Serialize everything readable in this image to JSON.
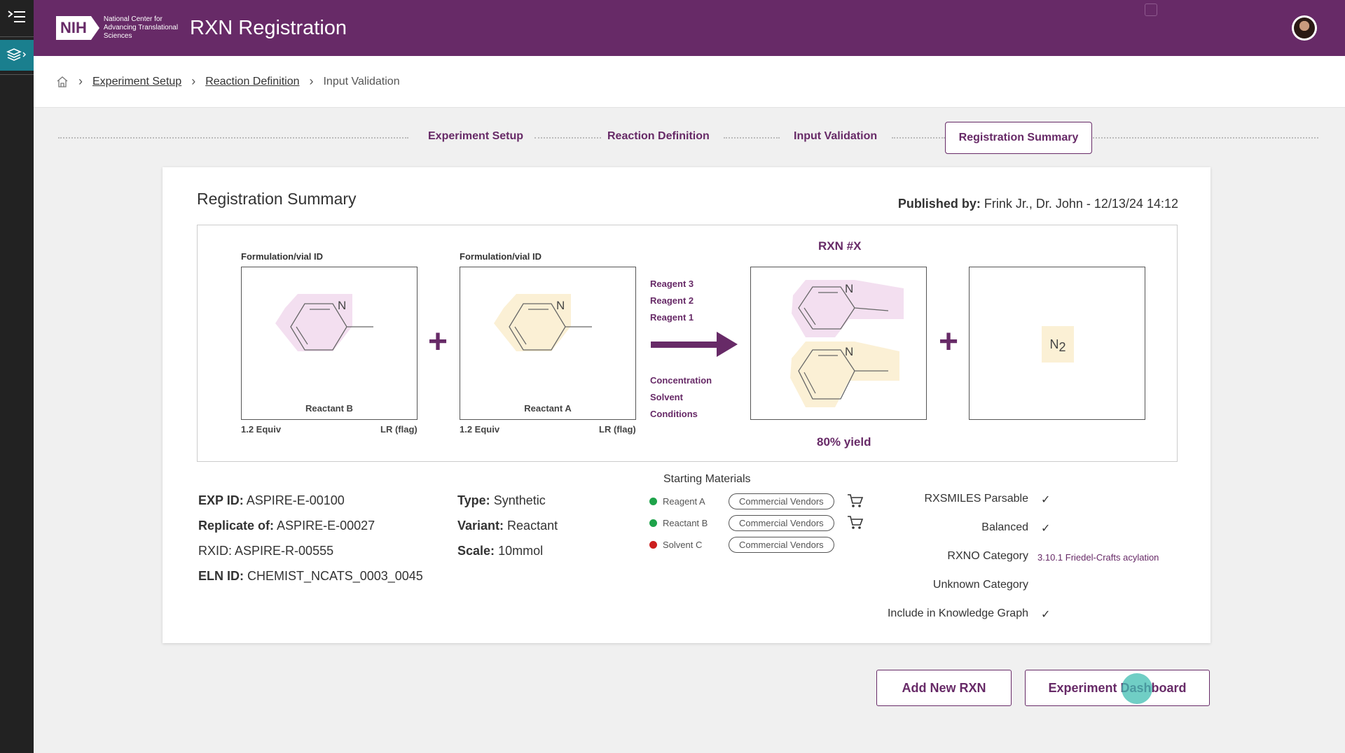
{
  "header": {
    "logo_text": "NIH",
    "logo_sub": "National Center for Advancing Translational Sciences",
    "title": "RXN Registration"
  },
  "breadcrumb": {
    "items": [
      "Experiment Setup",
      "Reaction Definition"
    ],
    "current": "Input Validation"
  },
  "stepper": {
    "steps": [
      "Experiment Setup",
      "Reaction Definition",
      "Input Validation",
      "Registration Summary"
    ],
    "active": "Registration Summary"
  },
  "summary": {
    "title": "Registration Summary",
    "published_label": "Published by:",
    "published_value": "Frink Jr., Dr. John - 12/13/24 14:12"
  },
  "reaction": {
    "reactant_b": {
      "id_label": "Formulation/vial ID",
      "name": "Reactant B",
      "equiv": "1.2 Equiv",
      "flag": "LR (flag)"
    },
    "reactant_a": {
      "id_label": "Formulation/vial ID",
      "name": "Reactant A",
      "equiv": "1.2 Equiv",
      "flag": "LR (flag)"
    },
    "reagents": [
      "Reagent 3",
      "Reagent 2",
      "Reagent 1"
    ],
    "conditions": [
      "Concentration",
      "Solvent",
      "Conditions"
    ],
    "rxn_title": "RXN #X",
    "yield": "80% yield",
    "atom_n": "N",
    "byproduct_n": "N",
    "byproduct_sub": "2",
    "colors": {
      "pink": "#f3dff0",
      "yellow": "#fbf0d5",
      "accent": "#672a67"
    }
  },
  "details": {
    "exp_id_label": "EXP ID:",
    "exp_id": "ASPIRE-E-00100",
    "replicate_label": "Replicate of:",
    "replicate": "ASPIRE-E-00027",
    "rxid_label": "RXID:",
    "rxid": "ASPIRE-R-00555",
    "eln_label": "ELN ID:",
    "eln": "CHEMIST_NCATS_0003_0045",
    "type_label": "Type:",
    "type": "Synthetic",
    "variant_label": "Variant:",
    "variant": "Reactant",
    "scale_label": "Scale:",
    "scale": "10mmol"
  },
  "starting_materials": {
    "title": "Starting Materials",
    "items": [
      {
        "name": "Reagent A",
        "vendor": "Commercial Vendors",
        "status_color": "#1ea34a",
        "cart": true
      },
      {
        "name": "Reactant B",
        "vendor": "Commercial Vendors",
        "status_color": "#1ea34a",
        "cart": true
      },
      {
        "name": "Solvent C",
        "vendor": "Commercial Vendors",
        "status_color": "#cc1f1f",
        "cart": false
      }
    ]
  },
  "flags": {
    "rxsmiles": "RXSMILES Parsable",
    "balanced": "Balanced",
    "rxno": "RXNO Category",
    "rxno_value": "3.10.1 Friedel-Crafts acylation",
    "unknown": "Unknown Category",
    "knowledge": "Include in Knowledge Graph",
    "check": "✓"
  },
  "actions": {
    "add_new": "Add New RXN",
    "dashboard": "Experiment Dashboard"
  }
}
